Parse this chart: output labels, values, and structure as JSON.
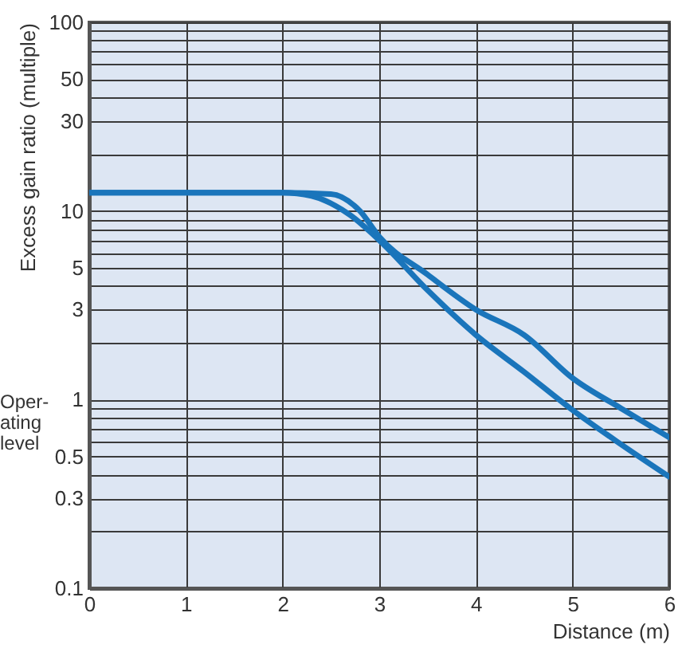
{
  "chart_data": {
    "type": "line",
    "xlabel": "Distance (m)",
    "ylabel": "Excess gain ratio (multiple)",
    "series": [
      {
        "color": "#1a75bb",
        "x": [
          0,
          1,
          2,
          2.3,
          2.7,
          3,
          3.5,
          4,
          4.5,
          5,
          5.5,
          6
        ],
        "values": [
          12.5,
          12.5,
          12.5,
          12,
          9.5,
          7,
          3.8,
          2.2,
          1.4,
          0.88,
          0.58,
          0.39
        ]
      },
      {
        "color": "#1a75bb",
        "x": [
          0,
          1,
          2,
          2.5,
          2.8,
          3,
          3.5,
          4,
          4.5,
          5,
          5.5,
          6
        ],
        "values": [
          12.5,
          12.5,
          12.5,
          12.3,
          10,
          7.3,
          4.6,
          3,
          2.2,
          1.3,
          0.9,
          0.63
        ]
      }
    ],
    "xlim": [
      0,
      6
    ],
    "xticks": [
      0,
      1,
      2,
      3,
      4,
      5,
      6
    ],
    "ylim": [
      0.1,
      100
    ],
    "yticks": [
      0.1,
      {
        "value": 0.2,
        "label": null
      },
      0.3,
      {
        "value": 0.4,
        "label": null
      },
      0.5,
      {
        "value": 0.6,
        "label": null
      },
      {
        "value": 0.7,
        "label": null
      },
      {
        "value": 0.8,
        "label": null
      },
      {
        "value": 0.9,
        "label": null
      },
      1,
      {
        "value": 2,
        "label": null
      },
      3,
      {
        "value": 4,
        "label": null
      },
      5,
      {
        "value": 6,
        "label": null
      },
      {
        "value": 7,
        "label": null
      },
      {
        "value": 8,
        "label": null
      },
      {
        "value": 9,
        "label": null
      },
      10,
      {
        "value": 20,
        "label": null
      },
      30,
      {
        "value": 40,
        "label": null
      },
      50,
      {
        "value": 60,
        "label": null
      },
      {
        "value": 70,
        "label": null
      },
      {
        "value": 80,
        "label": null
      },
      {
        "value": 90,
        "label": null
      },
      100
    ],
    "log": true,
    "grid": true,
    "marker": "none",
    "line_style": "solid",
    "annotations": [
      "Oper-\nating\nlevel"
    ]
  }
}
